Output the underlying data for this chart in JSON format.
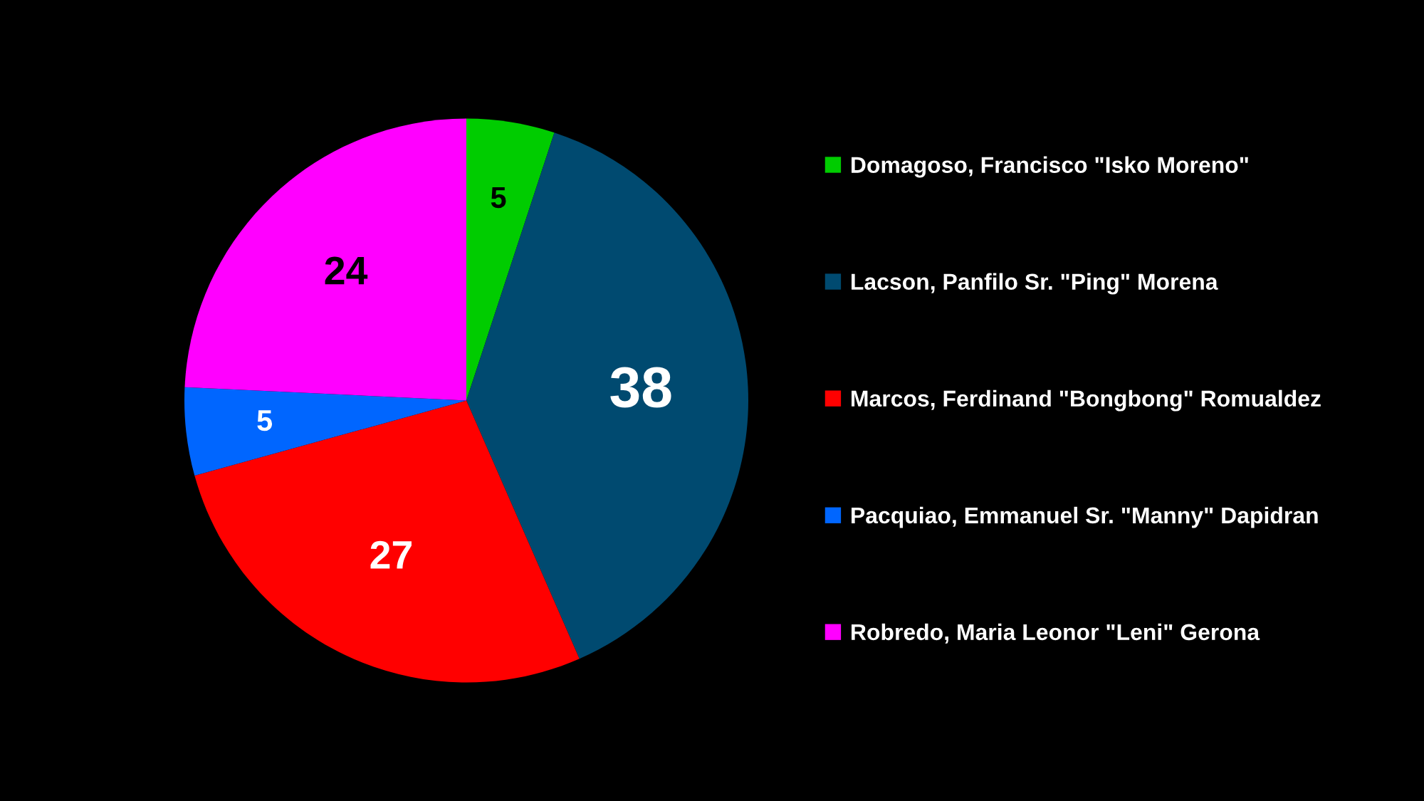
{
  "chart_data": {
    "type": "pie",
    "categories": [
      "Domagoso, Francisco \"Isko Moreno\"",
      "Lacson, Panfilo Sr. \"Ping\" Morena",
      "Marcos, Ferdinand \"Bongbong\" Romualdez",
      "Pacquiao, Emmanuel Sr. \"Manny\" Dapidran",
      "Robredo, Maria Leonor \"Leni\" Gerona"
    ],
    "values": [
      5,
      38,
      27,
      5,
      24
    ],
    "colors": [
      "#00cc00",
      "#004a70",
      "#ff0000",
      "#0066ff",
      "#ff00ff"
    ],
    "data_labels": true,
    "legend": "right"
  }
}
